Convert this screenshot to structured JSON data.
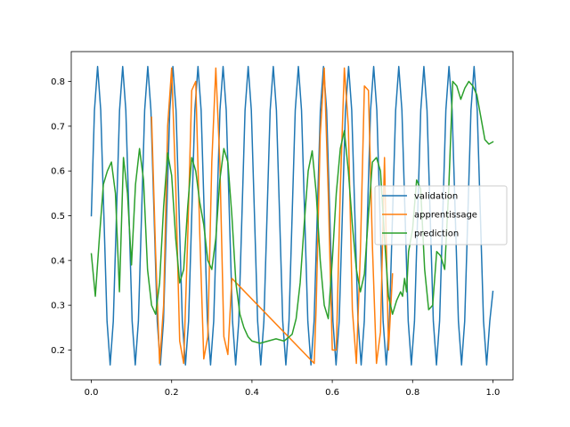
{
  "chart_data": {
    "type": "line",
    "xlim": [
      -0.05,
      1.05
    ],
    "ylim": [
      0.1333,
      0.8667
    ],
    "x_ticks": [
      0.0,
      0.2,
      0.4,
      0.6,
      0.8,
      1.0
    ],
    "x_tick_labels": [
      "0.0",
      "0.2",
      "0.4",
      "0.6",
      "0.8",
      "1.0"
    ],
    "y_ticks": [
      0.2,
      0.3,
      0.4,
      0.5,
      0.6,
      0.7,
      0.8
    ],
    "y_tick_labels": [
      "0.2",
      "0.3",
      "0.4",
      "0.5",
      "0.6",
      "0.7",
      "0.8"
    ],
    "grid": false,
    "legend_position": "center-right",
    "series": [
      {
        "name": "validation",
        "color": "#1f77b4",
        "x": [
          0.0,
          0.0078,
          0.0156,
          0.0234,
          0.0313,
          0.0391,
          0.0469,
          0.0547,
          0.0625,
          0.0703,
          0.0781,
          0.0859,
          0.0938,
          0.1016,
          0.1094,
          0.1172,
          0.125,
          0.1328,
          0.1406,
          0.1484,
          0.1563,
          0.1641,
          0.1719,
          0.1797,
          0.1875,
          0.1953,
          0.2031,
          0.2109,
          0.2188,
          0.2266,
          0.2344,
          0.2422,
          0.25,
          0.2578,
          0.2656,
          0.2734,
          0.2813,
          0.2891,
          0.2969,
          0.3047,
          0.3125,
          0.3203,
          0.3281,
          0.3359,
          0.3438,
          0.3516,
          0.3594,
          0.3672,
          0.375,
          0.3828,
          0.3906,
          0.3984,
          0.4063,
          0.4141,
          0.4219,
          0.4297,
          0.4375,
          0.4453,
          0.4531,
          0.4609,
          0.4688,
          0.4766,
          0.4844,
          0.4922,
          0.5,
          0.5078,
          0.5156,
          0.5234,
          0.5313,
          0.5391,
          0.5469,
          0.5547,
          0.5625,
          0.5703,
          0.5781,
          0.5859,
          0.5938,
          0.6016,
          0.6094,
          0.6172,
          0.625,
          0.6328,
          0.6406,
          0.6484,
          0.6563,
          0.6641,
          0.6719,
          0.6797,
          0.6875,
          0.6953,
          0.7031,
          0.7109,
          0.7188,
          0.7266,
          0.7344,
          0.7422,
          0.75,
          0.7578,
          0.7656,
          0.7734,
          0.7813,
          0.7891,
          0.7969,
          0.8047,
          0.8125,
          0.8203,
          0.8281,
          0.8359,
          0.8438,
          0.8516,
          0.8594,
          0.8672,
          0.875,
          0.8828,
          0.8906,
          0.8984,
          0.9063,
          0.9141,
          0.9219,
          0.9297,
          0.9375,
          0.9453,
          0.9531,
          0.9609,
          0.9688,
          0.9766,
          0.9844,
          0.9922,
          1.0
        ],
        "y": [
          0.5,
          0.7357,
          0.8333,
          0.7357,
          0.5,
          0.2643,
          0.1667,
          0.2643,
          0.5,
          0.7357,
          0.8333,
          0.7357,
          0.5,
          0.2643,
          0.1667,
          0.2643,
          0.5,
          0.7357,
          0.8333,
          0.7357,
          0.5,
          0.2643,
          0.1667,
          0.2643,
          0.5,
          0.7357,
          0.8333,
          0.7357,
          0.5,
          0.2643,
          0.1667,
          0.2643,
          0.5,
          0.7357,
          0.8333,
          0.7357,
          0.5,
          0.2643,
          0.1667,
          0.2643,
          0.5,
          0.7357,
          0.8333,
          0.7357,
          0.5,
          0.2643,
          0.1667,
          0.2643,
          0.5,
          0.7357,
          0.8333,
          0.7357,
          0.5,
          0.2643,
          0.1667,
          0.2643,
          0.5,
          0.7357,
          0.8333,
          0.7357,
          0.5,
          0.2643,
          0.1667,
          0.2643,
          0.5,
          0.7357,
          0.8333,
          0.7357,
          0.5,
          0.2643,
          0.1667,
          0.2643,
          0.5,
          0.7357,
          0.8333,
          0.7357,
          0.5,
          0.2643,
          0.1667,
          0.2643,
          0.5,
          0.7357,
          0.8333,
          0.7357,
          0.5,
          0.2643,
          0.1667,
          0.2643,
          0.5,
          0.7357,
          0.8333,
          0.7357,
          0.5,
          0.2643,
          0.1667,
          0.2643,
          0.5,
          0.7357,
          0.8333,
          0.7357,
          0.5,
          0.2643,
          0.1667,
          0.2643,
          0.5,
          0.7357,
          0.8333,
          0.7357,
          0.5,
          0.2643,
          0.1667,
          0.2643,
          0.5,
          0.7357,
          0.8333,
          0.7357,
          0.5,
          0.2643,
          0.1667,
          0.2643,
          0.5,
          0.7357,
          0.8333,
          0.7357,
          0.5,
          0.2643,
          0.1667,
          0.2643,
          0.331
        ]
      },
      {
        "name": "apprentissage",
        "color": "#ff7f0e",
        "x": [
          0.15,
          0.16,
          0.17,
          0.18,
          0.19,
          0.2,
          0.21,
          0.22,
          0.23,
          0.24,
          0.25,
          0.26,
          0.27,
          0.28,
          0.29,
          0.3,
          0.31,
          0.32,
          0.33,
          0.34,
          0.35,
          0.555,
          0.56,
          0.57,
          0.58,
          0.59,
          0.6,
          0.61,
          0.62,
          0.63,
          0.64,
          0.65,
          0.66,
          0.67,
          0.68,
          0.69,
          0.7,
          0.71,
          0.72,
          0.73,
          0.74,
          0.75
        ],
        "y": [
          0.72,
          0.42,
          0.17,
          0.3,
          0.7,
          0.83,
          0.57,
          0.22,
          0.17,
          0.45,
          0.78,
          0.8,
          0.46,
          0.18,
          0.23,
          0.62,
          0.83,
          0.62,
          0.23,
          0.19,
          0.36,
          0.17,
          0.3,
          0.68,
          0.83,
          0.55,
          0.2,
          0.2,
          0.56,
          0.83,
          0.7,
          0.29,
          0.17,
          0.42,
          0.79,
          0.78,
          0.43,
          0.17,
          0.24,
          0.63,
          0.2,
          0.37
        ]
      },
      {
        "name": "prediction",
        "color": "#2ca02c",
        "x": [
          0.0,
          0.01,
          0.02,
          0.03,
          0.04,
          0.05,
          0.06,
          0.07,
          0.08,
          0.09,
          0.1,
          0.11,
          0.12,
          0.13,
          0.14,
          0.15,
          0.16,
          0.17,
          0.18,
          0.19,
          0.2,
          0.21,
          0.22,
          0.23,
          0.24,
          0.25,
          0.26,
          0.27,
          0.28,
          0.29,
          0.3,
          0.31,
          0.32,
          0.33,
          0.34,
          0.35,
          0.36,
          0.37,
          0.38,
          0.39,
          0.4,
          0.42,
          0.44,
          0.46,
          0.48,
          0.5,
          0.51,
          0.52,
          0.53,
          0.54,
          0.55,
          0.56,
          0.57,
          0.58,
          0.59,
          0.6,
          0.61,
          0.62,
          0.63,
          0.64,
          0.65,
          0.66,
          0.67,
          0.68,
          0.69,
          0.7,
          0.71,
          0.72,
          0.73,
          0.74,
          0.75,
          0.76,
          0.77,
          0.775,
          0.78,
          0.785,
          0.79,
          0.8,
          0.81,
          0.82,
          0.83,
          0.84,
          0.85,
          0.86,
          0.87,
          0.88,
          0.89,
          0.9,
          0.91,
          0.92,
          0.93,
          0.94,
          0.95,
          0.96,
          0.97,
          0.98,
          0.99,
          1.0
        ],
        "y": [
          0.415,
          0.32,
          0.45,
          0.57,
          0.6,
          0.62,
          0.55,
          0.33,
          0.63,
          0.55,
          0.39,
          0.57,
          0.65,
          0.58,
          0.38,
          0.3,
          0.28,
          0.35,
          0.52,
          0.64,
          0.59,
          0.45,
          0.35,
          0.38,
          0.52,
          0.63,
          0.6,
          0.53,
          0.48,
          0.4,
          0.38,
          0.45,
          0.58,
          0.65,
          0.62,
          0.5,
          0.35,
          0.28,
          0.25,
          0.23,
          0.22,
          0.215,
          0.22,
          0.225,
          0.22,
          0.235,
          0.27,
          0.35,
          0.48,
          0.6,
          0.645,
          0.55,
          0.4,
          0.3,
          0.27,
          0.4,
          0.55,
          0.65,
          0.69,
          0.6,
          0.48,
          0.38,
          0.33,
          0.37,
          0.5,
          0.62,
          0.63,
          0.6,
          0.45,
          0.32,
          0.28,
          0.31,
          0.33,
          0.32,
          0.36,
          0.33,
          0.42,
          0.47,
          0.58,
          0.56,
          0.38,
          0.29,
          0.3,
          0.42,
          0.41,
          0.38,
          0.56,
          0.8,
          0.79,
          0.76,
          0.785,
          0.8,
          0.79,
          0.77,
          0.72,
          0.67,
          0.66,
          0.665
        ]
      }
    ],
    "legend": [
      "validation",
      "apprentissage",
      "prediction"
    ]
  }
}
